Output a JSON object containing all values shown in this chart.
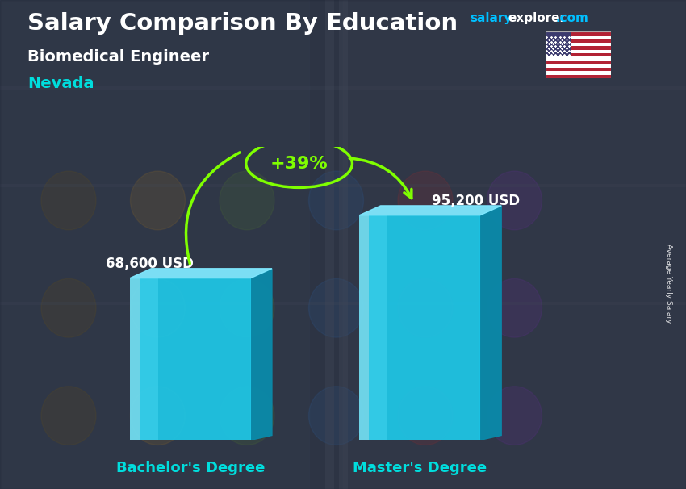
{
  "title": "Salary Comparison By Education",
  "subtitle": "Biomedical Engineer",
  "location": "Nevada",
  "categories": [
    "Bachelor's Degree",
    "Master's Degree"
  ],
  "values": [
    68600,
    95200
  ],
  "value_labels": [
    "68,600 USD",
    "95,200 USD"
  ],
  "pct_change": "+39%",
  "bar_color_front": "#1EC8E8",
  "bar_color_side": "#0A8AAA",
  "bar_color_top": "#80E8FF",
  "arrow_color": "#7FFF00",
  "title_color": "#FFFFFF",
  "subtitle_color": "#FFFFFF",
  "location_color": "#00DDDD",
  "xlabel_color": "#00DDDD",
  "value_label_color": "#FFFFFF",
  "brand_color_salary": "#00BFFF",
  "brand_color_explorer": "#FFFFFF",
  "brand_color_com": "#00BFFF",
  "bg_dark": "#2a3040",
  "avg_yearly_salary": "Average Yearly Salary",
  "figsize": [
    8.5,
    6.06
  ],
  "dpi": 100
}
